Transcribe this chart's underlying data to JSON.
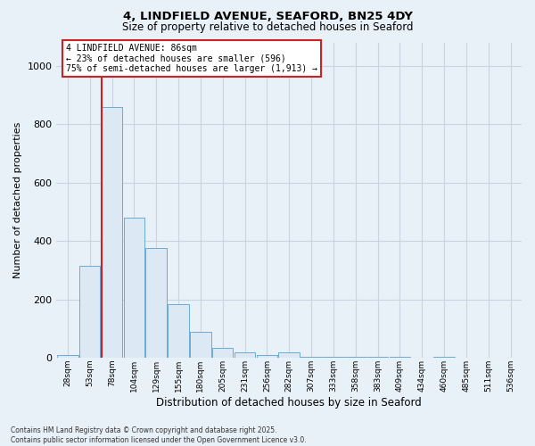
{
  "title_line1": "4, LINDFIELD AVENUE, SEAFORD, BN25 4DY",
  "title_line2": "Size of property relative to detached houses in Seaford",
  "xlabel": "Distribution of detached houses by size in Seaford",
  "ylabel": "Number of detached properties",
  "categories": [
    "28sqm",
    "53sqm",
    "78sqm",
    "104sqm",
    "129sqm",
    "155sqm",
    "180sqm",
    "205sqm",
    "231sqm",
    "256sqm",
    "282sqm",
    "307sqm",
    "333sqm",
    "358sqm",
    "383sqm",
    "409sqm",
    "434sqm",
    "460sqm",
    "485sqm",
    "511sqm",
    "536sqm"
  ],
  "values": [
    10,
    315,
    860,
    480,
    375,
    185,
    90,
    35,
    20,
    10,
    20,
    5,
    5,
    5,
    5,
    5,
    0,
    5,
    0,
    0,
    0
  ],
  "bar_color": "#dce8f3",
  "bar_edge_color": "#6aaad4",
  "grid_color": "#c8d4e0",
  "vline_color": "#cc2222",
  "annotation_text": "4 LINDFIELD AVENUE: 86sqm\n← 23% of detached houses are smaller (596)\n75% of semi-detached houses are larger (1,913) →",
  "annotation_box_color": "#ffffff",
  "annotation_box_edge": "#cc2222",
  "ylim": [
    0,
    1080
  ],
  "yticks": [
    0,
    200,
    400,
    600,
    800,
    1000
  ],
  "footer": "Contains HM Land Registry data © Crown copyright and database right 2025.\nContains public sector information licensed under the Open Government Licence v3.0.",
  "bg_color": "#e8f0f8"
}
